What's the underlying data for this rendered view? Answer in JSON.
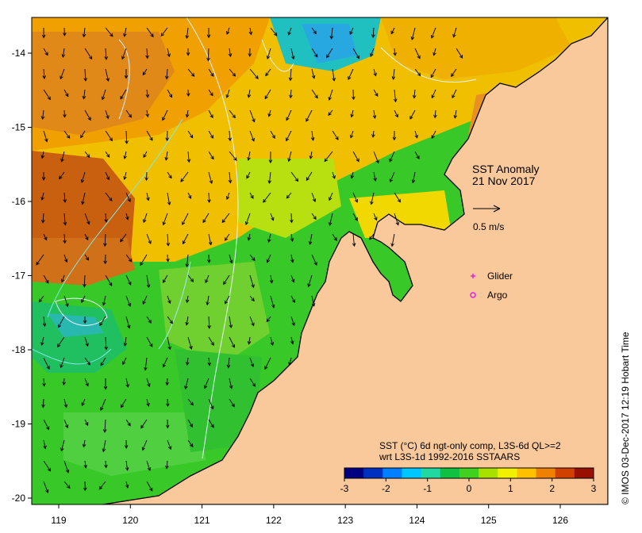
{
  "map": {
    "title_line1": "SST Anomaly",
    "title_line2": "21 Nov 2017",
    "vector_scale_label": "0.5 m/s",
    "legend": [
      {
        "label": "Glider",
        "marker": "plus",
        "color": "#e020e0"
      },
      {
        "label": "Argo",
        "marker": "circle",
        "color": "#e020e0"
      }
    ],
    "description_line1": "SST (°C) 6d ngt-only comp, L3S-6d QL>=2",
    "description_line2": "wrt L3S-1d 1992-2016 SSTAARS",
    "credit": "© IMOS 03-Dec-2017 12:19 Hobart Time",
    "lon_ticks": [
      "119",
      "120",
      "121",
      "122",
      "123",
      "124",
      "125",
      "126"
    ],
    "lat_ticks": [
      "-14",
      "-15",
      "-16",
      "-17",
      "-18",
      "-19",
      "-20"
    ],
    "colorbar": {
      "ticks": [
        "-3",
        "-2",
        "-1",
        "0",
        "1",
        "2",
        "3"
      ],
      "range": [
        -3,
        3
      ],
      "colors": [
        "#000080",
        "#0030c0",
        "#0080ff",
        "#00c8ff",
        "#20d8a0",
        "#10c040",
        "#40d020",
        "#a8e000",
        "#f0f000",
        "#ffc000",
        "#f08000",
        "#d04000",
        "#9a1000"
      ]
    },
    "colors": {
      "land": "#f9c99c",
      "coast": "#000000",
      "background": "#ffffff"
    }
  }
}
